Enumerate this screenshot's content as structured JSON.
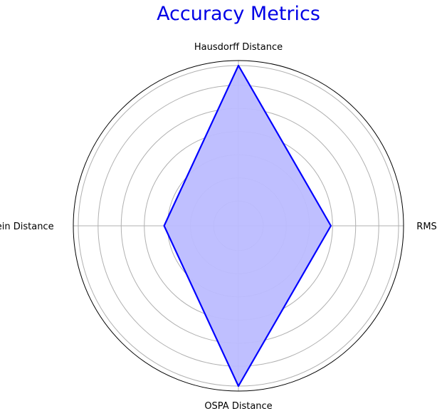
{
  "chart_data": {
    "type": "radar",
    "title": "Accuracy Metrics",
    "categories": [
      "RMSE",
      "Hausdorff Distance",
      "Wasserstein Distance",
      "OSPA Distance"
    ],
    "series": [
      {
        "values": [
          0.56,
          0.97,
          0.45,
          0.97
        ]
      }
    ],
    "rlim": [
      0,
      1
    ],
    "radial_grid": [
      0.15,
      0.29,
      0.43,
      0.57,
      0.71,
      0.85,
      0.97
    ],
    "grid": true,
    "colors": {
      "title": "#0000e6",
      "line": "#0000ff",
      "fill": "#bcbcff",
      "grid": "#b0b0b0",
      "frame": "#000000"
    }
  }
}
